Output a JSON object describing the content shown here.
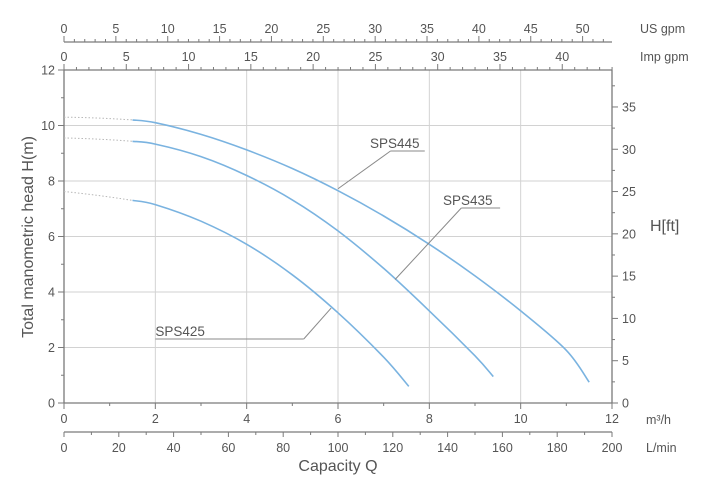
{
  "chart_data": {
    "type": "line",
    "title": "",
    "xlabel": "Capacity Q",
    "ylabel": "Total manometric head H(m)",
    "right_axis_label": "H[ft]",
    "x_unit": "m³/h",
    "x_unit_lmin": "L/min",
    "x_unit_usgpm": "US gpm",
    "x_unit_impgpm": "Imp gpm",
    "xlim": [
      0,
      12
    ],
    "ylim": [
      0,
      12
    ],
    "grid": true,
    "axes": {
      "m3h_ticks": [
        "0",
        "2",
        "4",
        "6",
        "8",
        "10",
        "12"
      ],
      "lmin_ticks": [
        "0",
        "20",
        "40",
        "60",
        "80",
        "100",
        "120",
        "140",
        "160",
        "180",
        "200"
      ],
      "usgpm_ticks": [
        "0",
        "5",
        "10",
        "15",
        "20",
        "25",
        "30",
        "35",
        "40",
        "45",
        "50"
      ],
      "impgpm_ticks": [
        "0",
        "5",
        "10",
        "15",
        "20",
        "25",
        "30",
        "35",
        "40"
      ],
      "head_m_ticks": [
        "0",
        "2",
        "4",
        "6",
        "8",
        "10",
        "12"
      ],
      "head_ft_ticks": [
        "0",
        "5",
        "10",
        "15",
        "20",
        "25",
        "30",
        "35"
      ]
    },
    "series": [
      {
        "name": "SPS445",
        "color": "#7ab3e0",
        "x": [
          1.5,
          2,
          3,
          4,
          5,
          6,
          7,
          8,
          9,
          10,
          11,
          11.5
        ],
        "y": [
          10.2,
          10.1,
          9.68,
          9.12,
          8.45,
          7.65,
          6.74,
          5.72,
          4.58,
          3.32,
          1.9,
          0.75
        ],
        "extrapolated": {
          "x": [
            0,
            1.5
          ],
          "y": [
            10.3,
            10.2
          ]
        }
      },
      {
        "name": "SPS435",
        "color": "#7ab3e0",
        "x": [
          1.5,
          2,
          3,
          4,
          5,
          6,
          7,
          8,
          9,
          9.4
        ],
        "y": [
          9.43,
          9.33,
          8.88,
          8.2,
          7.32,
          6.2,
          4.85,
          3.32,
          1.7,
          0.95
        ],
        "extrapolated": {
          "x": [
            0,
            1.5
          ],
          "y": [
            9.55,
            9.43
          ]
        }
      },
      {
        "name": "SPS425",
        "color": "#7ab3e0",
        "x": [
          1.5,
          2,
          3,
          4,
          5,
          6,
          7,
          7.55
        ],
        "y": [
          7.3,
          7.15,
          6.55,
          5.72,
          4.62,
          3.25,
          1.65,
          0.6
        ],
        "extrapolated": {
          "x": [
            0,
            1.5
          ],
          "y": [
            7.62,
            7.3
          ]
        }
      }
    ],
    "labels": [
      {
        "text": "SPS445",
        "series": "SPS445"
      },
      {
        "text": "SPS435",
        "series": "SPS435"
      },
      {
        "text": "SPS425",
        "series": "SPS425"
      }
    ]
  }
}
